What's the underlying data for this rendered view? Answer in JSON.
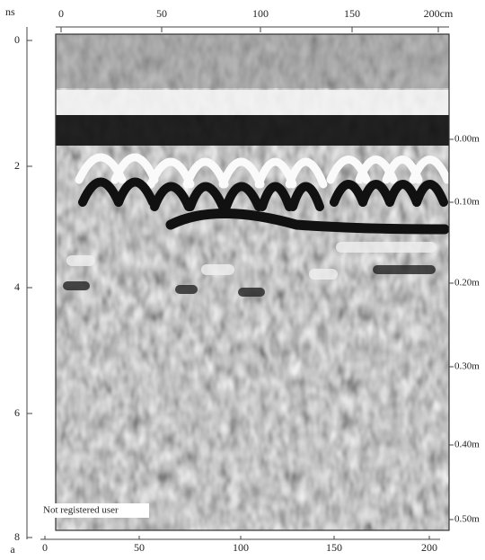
{
  "corner_label": "ns",
  "top_axis": {
    "ticks": [
      "0",
      "50",
      "100",
      "150",
      "200cm"
    ]
  },
  "left_axis": {
    "ticks": [
      "0",
      "2",
      "4",
      "6",
      "8"
    ]
  },
  "right_axis": {
    "ticks": [
      "0.00m",
      "0.10m",
      "0.20m",
      "0.30m",
      "0.40m",
      "0.50m"
    ]
  },
  "bottom_axis": {
    "ticks": [
      "0",
      "50",
      "100",
      "150",
      "200"
    ]
  },
  "bottom_corner_label": "a",
  "watermark": "Not registered user"
}
